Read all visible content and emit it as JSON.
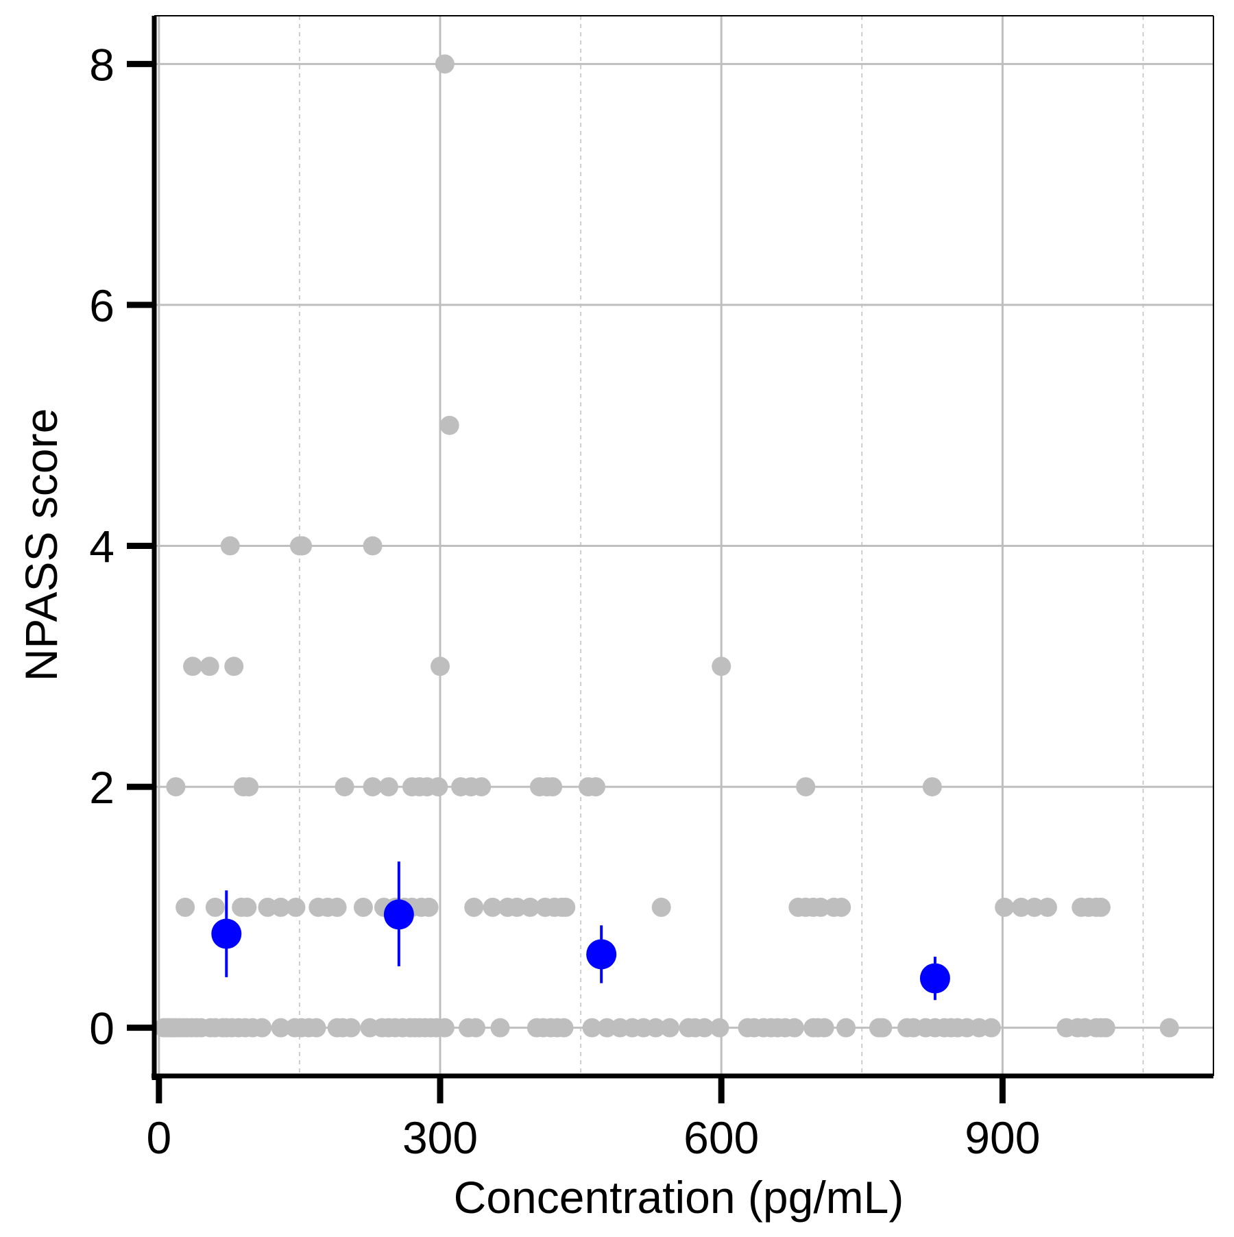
{
  "chart_data": {
    "type": "scatter",
    "title": "",
    "xlabel": "Concentration (pg/mL)",
    "ylabel": "NPASS score",
    "xlim": [
      -5,
      1125
    ],
    "ylim": [
      -0.4,
      8.4
    ],
    "xticks": [
      0,
      300,
      600,
      900
    ],
    "xtick_labels": [
      "0",
      "300",
      "600",
      "900"
    ],
    "x_minor_gridlines": [
      150,
      450,
      750,
      1050
    ],
    "yticks": [
      0,
      2,
      4,
      6,
      8
    ],
    "ytick_labels": [
      "0",
      "2",
      "4",
      "6",
      "8"
    ],
    "y_minor_gridlines": [
      1,
      3,
      5,
      7
    ],
    "grid": true,
    "colors": {
      "raw_points": "#bebebe",
      "summary": "#0000ff",
      "axis": "#000000",
      "grid": "#bebebe"
    },
    "series": [
      {
        "kind": "raw",
        "x": [
          5,
          8,
          10,
          12,
          15,
          18,
          22,
          26,
          30,
          35,
          40,
          45,
          55,
          60,
          68,
          72,
          78,
          85,
          92,
          100,
          110,
          130,
          145,
          152,
          160,
          168,
          190,
          196,
          205,
          225,
          238,
          245,
          252,
          260,
          268,
          273,
          278,
          284,
          290,
          296,
          305,
          330,
          338,
          364,
          403,
          410,
          418,
          425,
          432,
          462,
          478,
          492,
          505,
          517,
          530,
          545,
          565,
          572,
          582,
          598,
          628,
          635,
          645,
          653,
          660,
          668,
          678,
          698,
          703,
          710,
          733,
          768,
          772,
          798,
          805,
          818,
          828,
          838,
          845,
          852,
          862,
          875,
          888,
          968,
          980,
          988,
          1000,
          1005,
          1010,
          1078
        ],
        "y": [
          0,
          0,
          0,
          0,
          0,
          0,
          0,
          0,
          0,
          0,
          0,
          0,
          0,
          0,
          0,
          0,
          0,
          0,
          0,
          0,
          0,
          0,
          0,
          0,
          0,
          0,
          0,
          0,
          0,
          0,
          0,
          0,
          0,
          0,
          0,
          0,
          0,
          0,
          0,
          0,
          0,
          0,
          0,
          0,
          0,
          0,
          0,
          0,
          0,
          0,
          0,
          0,
          0,
          0,
          0,
          0,
          0,
          0,
          0,
          0,
          0,
          0,
          0,
          0,
          0,
          0,
          0,
          0,
          0,
          0,
          0,
          0,
          0,
          0,
          0,
          0,
          0,
          0,
          0,
          0,
          0,
          0,
          0,
          0,
          0,
          0,
          0,
          0,
          0,
          0
        ]
      },
      {
        "kind": "raw",
        "x": [
          28,
          60,
          88,
          94,
          116,
          130,
          146,
          170,
          180,
          190,
          218,
          240,
          252,
          262,
          270,
          280,
          288,
          336,
          356,
          372,
          382,
          396,
          412,
          422,
          430,
          434,
          536,
          682,
          690,
          698,
          706,
          720,
          728,
          902,
          920,
          934,
          948,
          984,
          992,
          1000,
          1005
        ],
        "y": [
          1,
          1,
          1,
          1,
          1,
          1,
          1,
          1,
          1,
          1,
          1,
          1,
          1,
          1,
          1,
          1,
          1,
          1,
          1,
          1,
          1,
          1,
          1,
          1,
          1,
          1,
          1,
          1,
          1,
          1,
          1,
          1,
          1,
          1,
          1,
          1,
          1,
          1,
          1,
          1,
          1
        ]
      },
      {
        "kind": "raw",
        "x": [
          18,
          90,
          96,
          198,
          228,
          245,
          270,
          278,
          286,
          298,
          322,
          333,
          344,
          406,
          414,
          420,
          458,
          466,
          690,
          825
        ],
        "y": [
          2,
          2,
          2,
          2,
          2,
          2,
          2,
          2,
          2,
          2,
          2,
          2,
          2,
          2,
          2,
          2,
          2,
          2,
          2,
          2
        ]
      },
      {
        "kind": "raw",
        "x": [
          36,
          54,
          80,
          300,
          600
        ],
        "y": [
          3,
          3,
          3,
          3,
          3
        ]
      },
      {
        "kind": "raw",
        "x": [
          76,
          150,
          153,
          228,
          310,
          305
        ],
        "y": [
          4,
          4,
          4,
          4,
          5,
          8
        ]
      },
      {
        "kind": "summary",
        "x": [
          72,
          256,
          472,
          828
        ],
        "y": [
          0.78,
          0.94,
          0.61,
          0.41
        ],
        "ymin": [
          0.42,
          0.51,
          0.37,
          0.23
        ],
        "ymax": [
          1.14,
          1.38,
          0.85,
          0.59
        ]
      }
    ]
  }
}
